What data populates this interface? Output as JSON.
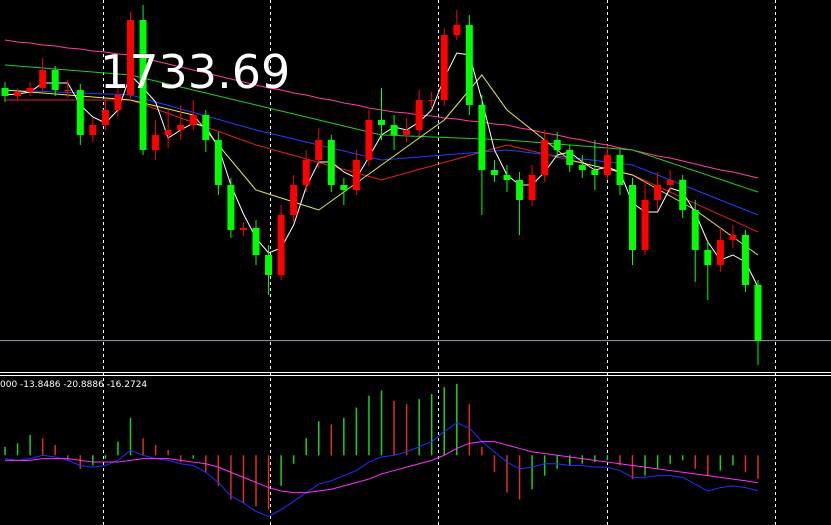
{
  "chart_data": [
    {
      "type": "candlestick",
      "bid": 1733.69,
      "ylim": [
        1718,
        1904
      ],
      "up_color": "#ff0000",
      "down_color": "#00ff00",
      "bid_line_color": "#8aa4b8",
      "open": [
        1860,
        1856,
        1858,
        1860,
        1869,
        1859,
        1859,
        1836.5,
        1841.5,
        1849,
        1856.5,
        1894,
        1829,
        1836.5,
        1839,
        1841.5,
        1846.5,
        1834,
        1811.5,
        1789,
        1790,
        1776.5,
        1766.5,
        1796.5,
        1811.5,
        1824,
        1834,
        1811.5,
        1809,
        1824,
        1844,
        1841.5,
        1836.5,
        1839,
        1854,
        1854,
        1886.5,
        1891.5,
        1851.5,
        1819,
        1816.5,
        1814,
        1804,
        1816.5,
        1834,
        1829,
        1821.5,
        1819,
        1816.5,
        1826.5,
        1811.5,
        1779,
        1804,
        1811.5,
        1814,
        1799,
        1779,
        1771.5,
        1784,
        1786.5,
        1761.5
      ],
      "high": [
        1863,
        1860,
        1863,
        1875,
        1871,
        1864,
        1862,
        1845,
        1854,
        1861.5,
        1898,
        1901.5,
        1844,
        1849,
        1851.5,
        1854,
        1849,
        1838,
        1815,
        1793,
        1794,
        1781.5,
        1801.5,
        1816.5,
        1829,
        1840,
        1836.5,
        1815,
        1829,
        1849,
        1860,
        1846.5,
        1845,
        1859,
        1858,
        1890,
        1899,
        1896.5,
        1856.5,
        1824,
        1821.5,
        1818,
        1821.5,
        1839,
        1838,
        1831.5,
        1826.5,
        1834,
        1831.5,
        1829,
        1815,
        1814,
        1818,
        1819,
        1816.5,
        1804,
        1784,
        1790,
        1791.5,
        1789,
        1764
      ],
      "low": [
        1853,
        1854,
        1856,
        1858,
        1856,
        1855,
        1831.5,
        1833,
        1839,
        1846,
        1854,
        1826.5,
        1824,
        1830,
        1834,
        1839,
        1828,
        1806.5,
        1785,
        1786,
        1771.5,
        1756.5,
        1764,
        1793,
        1808,
        1820,
        1808,
        1801.5,
        1806.5,
        1821,
        1834,
        1829,
        1833,
        1836,
        1850,
        1851,
        1884,
        1846.5,
        1796.5,
        1813,
        1808,
        1786.5,
        1801,
        1813,
        1825,
        1818,
        1815,
        1809,
        1814,
        1806.5,
        1771.5,
        1776.5,
        1799,
        1808,
        1795,
        1763,
        1754,
        1768,
        1780,
        1758,
        1721.5
      ],
      "close": [
        1856,
        1858,
        1860,
        1869,
        1859,
        1859,
        1836.5,
        1841.5,
        1849,
        1856.5,
        1894,
        1829,
        1836.5,
        1839,
        1841.5,
        1846.5,
        1834,
        1811.5,
        1789,
        1790,
        1776.5,
        1766.5,
        1796.5,
        1811.5,
        1824,
        1834,
        1811.5,
        1809,
        1824,
        1844,
        1841.5,
        1836.5,
        1839,
        1854,
        1854,
        1886.5,
        1891.5,
        1851.5,
        1819,
        1816.5,
        1814,
        1804,
        1816.5,
        1834,
        1829,
        1821.5,
        1819,
        1816.5,
        1826.5,
        1811.5,
        1779,
        1804,
        1811.5,
        1814,
        1799,
        1779,
        1771.5,
        1784,
        1786.5,
        1761.5,
        1733.69
      ],
      "series": [
        {
          "color": "#ff3fa0",
          "values": [
            1884,
            1883,
            1882.5,
            1881.5,
            1881,
            1880,
            1879.5,
            1878.5,
            1878,
            1877,
            1876.5,
            1875,
            1873.5,
            1872,
            1870.5,
            1869,
            1867.5,
            1866,
            1864.5,
            1863,
            1861.5,
            1860,
            1859,
            1857.5,
            1856.5,
            1855,
            1854,
            1852.5,
            1851.5,
            1850,
            1849,
            1848,
            1847.5,
            1846.5,
            1846,
            1845,
            1844.5,
            1843.5,
            1843,
            1842,
            1841.5,
            1840,
            1839,
            1837.5,
            1836.5,
            1835,
            1834,
            1832.5,
            1831.5,
            1830,
            1829,
            1827.5,
            1826,
            1825,
            1823.5,
            1822,
            1820.5,
            1819,
            1818,
            1816.5,
            1815
          ]
        },
        {
          "color": "#22cc22",
          "values": [
            1871.5,
            1871,
            1870.5,
            1870,
            1869.5,
            1869,
            1868.5,
            1868,
            1867.5,
            1867,
            1866.5,
            1865,
            1863.5,
            1862,
            1860.5,
            1859,
            1857.5,
            1856,
            1854.5,
            1853,
            1851.5,
            1850,
            1848.5,
            1847,
            1845.5,
            1844,
            1842.5,
            1841,
            1839.5,
            1838,
            1836.5,
            1836.3,
            1836,
            1835.8,
            1835.5,
            1835.3,
            1835,
            1834.8,
            1834.5,
            1834.3,
            1834,
            1833.5,
            1833,
            1832.5,
            1832,
            1831.5,
            1831,
            1830.5,
            1830,
            1829.5,
            1829,
            1826.9,
            1824.8,
            1822.7,
            1820.6,
            1818.5,
            1816.4,
            1814.3,
            1812.2,
            1810.1,
            1808
          ]
        },
        {
          "color": "#2040ff",
          "values": [
            1859,
            1858.8,
            1858.5,
            1858.3,
            1858,
            1857.8,
            1857.5,
            1857.3,
            1857,
            1856.8,
            1856.5,
            1854.8,
            1853,
            1851.3,
            1849.5,
            1847.8,
            1846,
            1844.3,
            1842.5,
            1840.8,
            1839,
            1837.5,
            1836,
            1834.5,
            1833,
            1831.5,
            1830,
            1828.5,
            1827,
            1825.5,
            1824,
            1824.5,
            1825,
            1825.5,
            1826,
            1826.5,
            1827,
            1827.5,
            1828,
            1828.5,
            1829,
            1828.3,
            1827.5,
            1826.8,
            1826,
            1825.3,
            1824.5,
            1823.8,
            1823,
            1822.3,
            1821.5,
            1819,
            1816.5,
            1814,
            1811.5,
            1809,
            1806.5,
            1804,
            1801.5,
            1799,
            1796.5
          ]
        },
        {
          "color": "#e02020",
          "values": [
            1854,
            1854,
            1854,
            1854,
            1854,
            1854,
            1854,
            1854,
            1854,
            1854,
            1854,
            1851.8,
            1849.5,
            1847.3,
            1845,
            1842.8,
            1840.5,
            1838.3,
            1836,
            1833.8,
            1831.5,
            1829.8,
            1828,
            1826.3,
            1824.5,
            1822.8,
            1821,
            1819.3,
            1817.5,
            1815.8,
            1814,
            1815.8,
            1817.5,
            1819.3,
            1821,
            1822.8,
            1824.5,
            1826.3,
            1828,
            1829.8,
            1831.5,
            1830,
            1828.5,
            1827,
            1825.5,
            1824,
            1822.5,
            1821,
            1819.5,
            1818,
            1816.5,
            1813.7,
            1810.8,
            1808,
            1805.1,
            1802.3,
            1799.4,
            1796.6,
            1793.7,
            1790.9,
            1788
          ]
        },
        {
          "color": "#e8e840",
          "values": [
            1859,
            1858.5,
            1858,
            1857.5,
            1857,
            1856.5,
            1856,
            1855.5,
            1855,
            1854.5,
            1854,
            1852.5,
            1851,
            1849.5,
            1848,
            1846.5,
            1839,
            1831.5,
            1824,
            1816.5,
            1809,
            1807,
            1805,
            1803,
            1801,
            1799,
            1803.5,
            1808,
            1812.5,
            1817,
            1821.5,
            1826,
            1830.5,
            1835,
            1839.5,
            1844,
            1851.5,
            1859,
            1866.5,
            1857.8,
            1849,
            1844,
            1839,
            1834,
            1829,
            1824,
            1822.5,
            1821,
            1819.5,
            1818,
            1816.5,
            1813,
            1809.5,
            1806,
            1802.5,
            1799,
            1794.5,
            1790,
            1785.5,
            1781,
            1776.5
          ]
        },
        {
          "color": "#ffffff",
          "values": [
            1856.5,
            1857,
            1858,
            1862.5,
            1862.5,
            1862.5,
            1851.5,
            1845.5,
            1842.5,
            1849,
            1866.5,
            1860,
            1853,
            1835,
            1839,
            1842.5,
            1840.5,
            1830.5,
            1811.5,
            1797,
            1785,
            1777.5,
            1780,
            1791.5,
            1810.5,
            1823,
            1823,
            1818,
            1815,
            1825.5,
            1836.5,
            1840.5,
            1839,
            1843,
            1849,
            1865,
            1877.5,
            1876.5,
            1854,
            1829,
            1816.5,
            1811.5,
            1811.5,
            1818,
            1826.5,
            1828,
            1823,
            1819,
            1820.5,
            1818,
            1802.5,
            1798,
            1798,
            1810,
            1808,
            1797.5,
            1783,
            1774,
            1776.5,
            1773,
            1760.5
          ]
        }
      ]
    },
    {
      "type": "macd",
      "label": "000 -13.8486 -20.8886 -16.2724",
      "ylim": [
        -41,
        46
      ],
      "up_color": "#22cc22",
      "down_color": "#e03020",
      "histogram": [
        5,
        7,
        12,
        10,
        6,
        -3,
        -8,
        -6,
        -2,
        8,
        22,
        10,
        6,
        3,
        -4,
        -2,
        -10,
        -18,
        -26,
        -28,
        -30,
        -32,
        -18,
        -5,
        10,
        20,
        18,
        22,
        28,
        35,
        38,
        32,
        30,
        33,
        36,
        40,
        42,
        30,
        5,
        -10,
        -22,
        -26,
        -20,
        -12,
        -8,
        -6,
        -5,
        -4,
        -3,
        -6,
        -14,
        -12,
        -8,
        -5,
        -3,
        -8,
        -12,
        -9,
        -6,
        -10,
        -13.8486
      ],
      "series": [
        {
          "color": "#2030ff",
          "values": [
            -2,
            -3,
            -2,
            0,
            -1,
            -3,
            -6,
            -7,
            -6,
            -3,
            3,
            0,
            -2,
            -3,
            -5,
            -6,
            -10,
            -16,
            -24,
            -28,
            -33,
            -36,
            -32,
            -27,
            -22,
            -17,
            -15,
            -12,
            -9,
            -4,
            -1,
            0,
            2,
            5,
            8,
            14,
            19,
            16,
            8,
            2,
            -4,
            -8,
            -7,
            -5,
            -5,
            -6,
            -6,
            -7,
            -7,
            -9,
            -13,
            -13,
            -12,
            -12,
            -13,
            -17,
            -21,
            -19,
            -18,
            -19,
            -20.8886
          ]
        },
        {
          "color": "#ff30ff",
          "values": [
            -3,
            -3,
            -3,
            -2,
            -2,
            -2,
            -3,
            -4,
            -4,
            -4,
            -3,
            -2,
            -2,
            -2,
            -3,
            -4,
            -5,
            -7,
            -10,
            -13,
            -16,
            -19,
            -21,
            -22,
            -22,
            -21,
            -20,
            -18,
            -16,
            -14,
            -11,
            -9,
            -7,
            -5,
            -3,
            0,
            4,
            7,
            8,
            8,
            6,
            4,
            2,
            1,
            0,
            -1,
            -2,
            -3,
            -4,
            -5,
            -6,
            -7,
            -8,
            -9,
            -10,
            -11,
            -12,
            -13,
            -14,
            -15,
            -16.2724
          ]
        }
      ]
    }
  ]
}
